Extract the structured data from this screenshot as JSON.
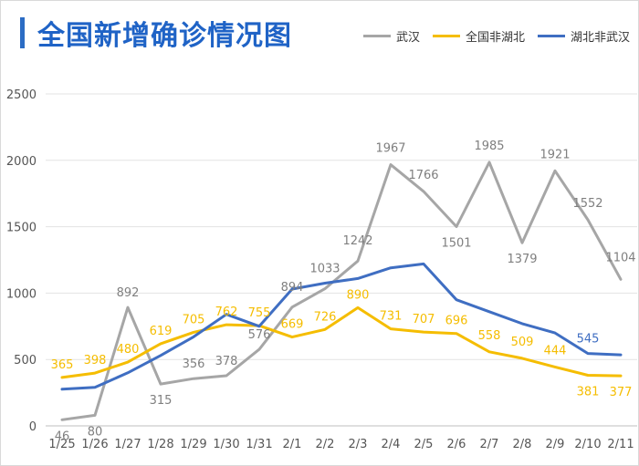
{
  "chart_data": {
    "type": "line",
    "title": "全国新增确诊情况图",
    "categories": [
      "1/25",
      "1/26",
      "1/27",
      "1/28",
      "1/29",
      "1/30",
      "1/31",
      "2/1",
      "2/2",
      "2/3",
      "2/4",
      "2/5",
      "2/6",
      "2/7",
      "2/8",
      "2/9",
      "2/10",
      "2/11"
    ],
    "ylim": [
      0,
      2500
    ],
    "yticks": [
      0,
      500,
      1000,
      1500,
      2000,
      2500
    ],
    "grid": true,
    "legend_position": "top-right",
    "series": [
      {
        "name": "武汉",
        "color": "#a6a6a6",
        "values": [
          46,
          80,
          892,
          315,
          356,
          378,
          576,
          894,
          1033,
          1242,
          1967,
          1766,
          1501,
          1985,
          1379,
          1921,
          1552,
          1104
        ],
        "labels": [
          "46",
          "80",
          "892",
          "315",
          "356",
          "378",
          "576",
          "894",
          "1033",
          "1242",
          "1967",
          "1766",
          "1501",
          "1985",
          "1379",
          "1921",
          "1552",
          "1104"
        ]
      },
      {
        "name": "全国非湖北",
        "color": "#f5bd00",
        "values": [
          365,
          398,
          480,
          619,
          705,
          762,
          755,
          669,
          726,
          890,
          731,
          707,
          696,
          558,
          509,
          444,
          381,
          377
        ],
        "labels": [
          "365",
          "398",
          "480",
          "619",
          "705",
          "762",
          "755",
          "669",
          "726",
          "890",
          "731",
          "707",
          "696",
          "558",
          "509",
          "444",
          "381",
          "377"
        ]
      },
      {
        "name": "湖北非武汉",
        "color": "#3f6ec2",
        "values": [
          276,
          290,
          400,
          530,
          670,
          840,
          750,
          1030,
          1075,
          1110,
          1190,
          1220,
          950,
          860,
          770,
          700,
          545,
          535
        ],
        "labels": [
          "",
          "",
          "",
          "",
          "",
          "",
          "",
          "",
          "",
          "",
          "",
          "",
          "",
          "",
          "",
          "",
          "545",
          ""
        ]
      }
    ]
  }
}
